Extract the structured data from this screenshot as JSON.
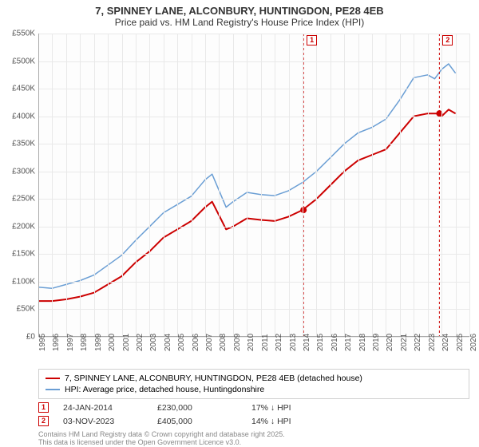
{
  "title": "7, SPINNEY LANE, ALCONBURY, HUNTINGDON, PE28 4EB",
  "subtitle": "Price paid vs. HM Land Registry's House Price Index (HPI)",
  "chart": {
    "type": "line",
    "background_color": "#fdfdfd",
    "grid_color": "#e9e9e9",
    "x_range": [
      1995,
      2026
    ],
    "y_range": [
      0,
      550000
    ],
    "y_ticks": [
      0,
      50000,
      100000,
      150000,
      200000,
      250000,
      300000,
      350000,
      400000,
      450000,
      500000,
      550000
    ],
    "y_tick_labels": [
      "£0",
      "£50K",
      "£100K",
      "£150K",
      "£200K",
      "£250K",
      "£300K",
      "£350K",
      "£400K",
      "£450K",
      "£500K",
      "£550K"
    ],
    "x_ticks": [
      1995,
      1996,
      1997,
      1998,
      1999,
      2000,
      2001,
      2002,
      2003,
      2004,
      2005,
      2006,
      2007,
      2008,
      2009,
      2010,
      2011,
      2012,
      2013,
      2014,
      2015,
      2016,
      2017,
      2018,
      2019,
      2020,
      2021,
      2022,
      2023,
      2024,
      2025,
      2026
    ],
    "label_fontsize": 10,
    "title_fontsize": 13,
    "series": [
      {
        "name": "property",
        "label": "7, SPINNEY LANE, ALCONBURY, HUNTINGDON, PE28 4EB (detached house)",
        "color": "#cc0000",
        "line_width": 2,
        "data": [
          [
            1995,
            65000
          ],
          [
            1996,
            65000
          ],
          [
            1997,
            68000
          ],
          [
            1998,
            73000
          ],
          [
            1999,
            80000
          ],
          [
            2000,
            95000
          ],
          [
            2001,
            110000
          ],
          [
            2002,
            135000
          ],
          [
            2003,
            155000
          ],
          [
            2004,
            180000
          ],
          [
            2005,
            195000
          ],
          [
            2006,
            210000
          ],
          [
            2007,
            235000
          ],
          [
            2007.5,
            245000
          ],
          [
            2008,
            220000
          ],
          [
            2008.5,
            195000
          ],
          [
            2009,
            200000
          ],
          [
            2010,
            215000
          ],
          [
            2011,
            212000
          ],
          [
            2012,
            210000
          ],
          [
            2013,
            218000
          ],
          [
            2014,
            230000
          ],
          [
            2015,
            250000
          ],
          [
            2016,
            275000
          ],
          [
            2017,
            300000
          ],
          [
            2018,
            320000
          ],
          [
            2019,
            330000
          ],
          [
            2020,
            340000
          ],
          [
            2021,
            370000
          ],
          [
            2022,
            400000
          ],
          [
            2023,
            405000
          ],
          [
            2023.8,
            405000
          ],
          [
            2024,
            400000
          ],
          [
            2024.5,
            412000
          ],
          [
            2025,
            405000
          ]
        ]
      },
      {
        "name": "hpi",
        "label": "HPI: Average price, detached house, Huntingdonshire",
        "color": "#6a9ed4",
        "line_width": 1.5,
        "data": [
          [
            1995,
            90000
          ],
          [
            1996,
            88000
          ],
          [
            1997,
            95000
          ],
          [
            1998,
            102000
          ],
          [
            1999,
            112000
          ],
          [
            2000,
            130000
          ],
          [
            2001,
            148000
          ],
          [
            2002,
            175000
          ],
          [
            2003,
            200000
          ],
          [
            2004,
            225000
          ],
          [
            2005,
            240000
          ],
          [
            2006,
            255000
          ],
          [
            2007,
            285000
          ],
          [
            2007.5,
            295000
          ],
          [
            2008,
            265000
          ],
          [
            2008.5,
            235000
          ],
          [
            2009,
            245000
          ],
          [
            2010,
            262000
          ],
          [
            2011,
            258000
          ],
          [
            2012,
            256000
          ],
          [
            2013,
            265000
          ],
          [
            2014,
            280000
          ],
          [
            2015,
            300000
          ],
          [
            2016,
            325000
          ],
          [
            2017,
            350000
          ],
          [
            2018,
            370000
          ],
          [
            2019,
            380000
          ],
          [
            2020,
            395000
          ],
          [
            2021,
            430000
          ],
          [
            2022,
            470000
          ],
          [
            2023,
            475000
          ],
          [
            2023.5,
            468000
          ],
          [
            2024,
            485000
          ],
          [
            2024.5,
            495000
          ],
          [
            2025,
            478000
          ]
        ]
      }
    ],
    "markers": [
      {
        "n": "1",
        "x": 2014.07,
        "y": 230000,
        "color": "#cc0000"
      },
      {
        "n": "2",
        "x": 2023.84,
        "y": 405000,
        "color": "#cc0000"
      }
    ]
  },
  "legend": {
    "items": [
      {
        "color": "#cc0000",
        "width": 2,
        "label": "7, SPINNEY LANE, ALCONBURY, HUNTINGDON, PE28 4EB (detached house)"
      },
      {
        "color": "#6a9ed4",
        "width": 1.5,
        "label": "HPI: Average price, detached house, Huntingdonshire"
      }
    ]
  },
  "transactions": [
    {
      "n": "1",
      "date": "24-JAN-2014",
      "price": "£230,000",
      "delta": "17% ↓ HPI"
    },
    {
      "n": "2",
      "date": "03-NOV-2023",
      "price": "£405,000",
      "delta": "14% ↓ HPI"
    }
  ],
  "copyright_line1": "Contains HM Land Registry data © Crown copyright and database right 2025.",
  "copyright_line2": "This data is licensed under the Open Government Licence v3.0."
}
